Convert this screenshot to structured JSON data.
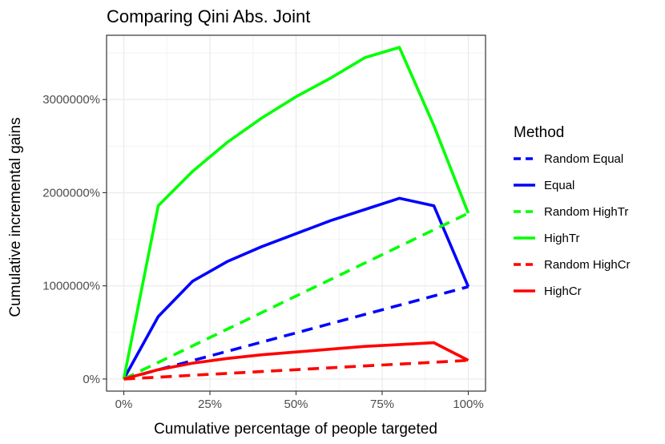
{
  "chart_data": {
    "type": "line",
    "title": "Comparing Qini Abs. Joint",
    "xlabel": "Cumulative percentage of people targeted",
    "ylabel": "Cumulative incremental gains",
    "x": [
      0,
      0.1,
      0.2,
      0.3,
      0.4,
      0.5,
      0.6,
      0.7,
      0.8,
      0.9,
      1.0
    ],
    "xlim": [
      -0.05,
      1.05
    ],
    "ylim": [
      -130000,
      3690000
    ],
    "xticks": [
      0,
      0.25,
      0.5,
      0.75,
      1.0
    ],
    "xtick_labels": [
      "0%",
      "25%",
      "50%",
      "75%",
      "100%"
    ],
    "yticks": [
      0,
      1000000,
      2000000,
      3000000
    ],
    "ytick_labels": [
      "0%",
      "1000000%",
      "2000000%",
      "3000000%"
    ],
    "grid": true,
    "legend": {
      "title": "Method",
      "placement": "right"
    },
    "series": [
      {
        "name": "Random Equal",
        "color": "#0000ff",
        "dash": "dashed",
        "values": [
          0,
          99000,
          198000,
          297000,
          396000,
          495000,
          594000,
          693000,
          792000,
          891000,
          990000
        ]
      },
      {
        "name": "Equal",
        "color": "#0000ff",
        "dash": "solid",
        "values": [
          0,
          670000,
          1050000,
          1260000,
          1420000,
          1560000,
          1700000,
          1820000,
          1940000,
          1860000,
          990000
        ]
      },
      {
        "name": "Random HighTr",
        "color": "#00ff00",
        "dash": "dashed",
        "values": [
          0,
          178000,
          356000,
          534000,
          712000,
          890000,
          1068000,
          1246000,
          1424000,
          1602000,
          1780000
        ]
      },
      {
        "name": "HighTr",
        "color": "#00ff00",
        "dash": "solid",
        "values": [
          0,
          1860000,
          2230000,
          2540000,
          2800000,
          3030000,
          3230000,
          3450000,
          3560000,
          2720000,
          1780000
        ]
      },
      {
        "name": "Random HighCr",
        "color": "#ff0000",
        "dash": "dashed",
        "values": [
          0,
          20000,
          40000,
          60000,
          80000,
          100000,
          120000,
          140000,
          160000,
          180000,
          200000
        ]
      },
      {
        "name": "HighCr",
        "color": "#ff0000",
        "dash": "solid",
        "values": [
          0,
          100000,
          170000,
          220000,
          260000,
          290000,
          320000,
          350000,
          370000,
          390000,
          200000
        ]
      }
    ]
  }
}
